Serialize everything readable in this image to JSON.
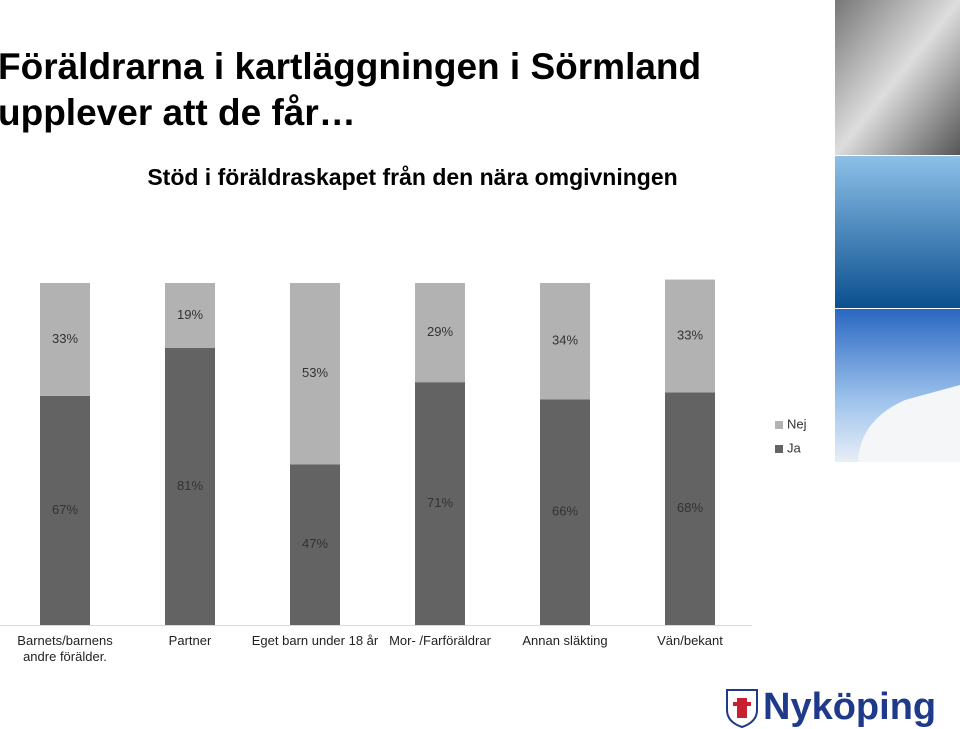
{
  "chart_data": {
    "type": "stacked-bar",
    "title": "Föräldrarna i kartläggningen i Sörmland upplever att de får…",
    "subtitle": "Stöd i föräldraskapet från den nära omgivningen",
    "categories": [
      "Barnets/barnens andre förälder.",
      "Partner",
      "Eget barn under 18 år",
      "Mor- /Farföräldrar",
      "Annan släkting",
      "Vän/bekant"
    ],
    "series": [
      {
        "name": "Ja",
        "color": "#636363",
        "values": [
          67,
          81,
          47,
          71,
          66,
          68
        ],
        "value_labels": [
          "67%",
          "81%",
          "47%",
          "71%",
          "66%",
          "68%"
        ]
      },
      {
        "name": "Nej",
        "color": "#b2b2b2",
        "values": [
          33,
          19,
          53,
          29,
          34,
          33
        ],
        "value_labels": [
          "33%",
          "19%",
          "53%",
          "29%",
          "34%",
          "33%"
        ]
      }
    ],
    "ylim": [
      0,
      100
    ],
    "legend": "right"
  },
  "logo": "Nyköping"
}
